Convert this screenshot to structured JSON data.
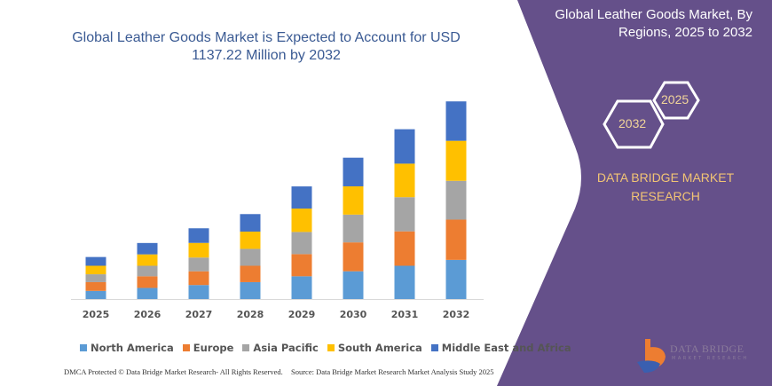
{
  "title": {
    "line1": "Global Leather Goods Market is Expected to Account for USD",
    "line2": "1137.22 Million by 2032"
  },
  "side_panel": {
    "title_line1": "Global Leather Goods Market, By",
    "title_line2": "Regions, 2025 to 2032",
    "hex_years": [
      "2025",
      "2032"
    ],
    "brand_line1": "DATA BRIDGE MARKET",
    "brand_line2": "RESEARCH",
    "logo_text": "DATA BRIDGE",
    "logo_subtext": "MARKET RESEARCH",
    "panel_color": "#65508a"
  },
  "footer": {
    "left": "DMCA Protected © Data Bridge Market Research-  All Rights Reserved.",
    "right": "Source: Data Bridge Market Research  Market Analysis Study 2025"
  },
  "chart_data": {
    "type": "bar",
    "stacked": true,
    "categories": [
      "2025",
      "2026",
      "2027",
      "2028",
      "2029",
      "2030",
      "2031",
      "2032"
    ],
    "series": [
      {
        "name": "North America",
        "color": "#5b9bd5",
        "values": [
          9.3,
          12.7,
          16,
          19.3,
          26,
          31.7,
          38,
          44.7
        ]
      },
      {
        "name": "Europe",
        "color": "#ed7d31",
        "values": [
          10,
          13.3,
          15.7,
          18.7,
          25.3,
          33,
          39.3,
          46
        ]
      },
      {
        "name": "Asia Pacific",
        "color": "#a5a5a5",
        "values": [
          9,
          12,
          15.7,
          19.3,
          25.3,
          31.7,
          39,
          44.3
        ]
      },
      {
        "name": "South America",
        "color": "#ffc000",
        "values": [
          9.7,
          13,
          16.7,
          19.7,
          26.7,
          32.3,
          38.3,
          45.7
        ]
      },
      {
        "name": "Middle East and Africa",
        "color": "#4472c4",
        "values": [
          10,
          13,
          16.7,
          20,
          25.3,
          32.7,
          39.3,
          45
        ]
      }
    ],
    "ylim": [
      0,
      230
    ],
    "grid": false,
    "legend": "bottom"
  }
}
